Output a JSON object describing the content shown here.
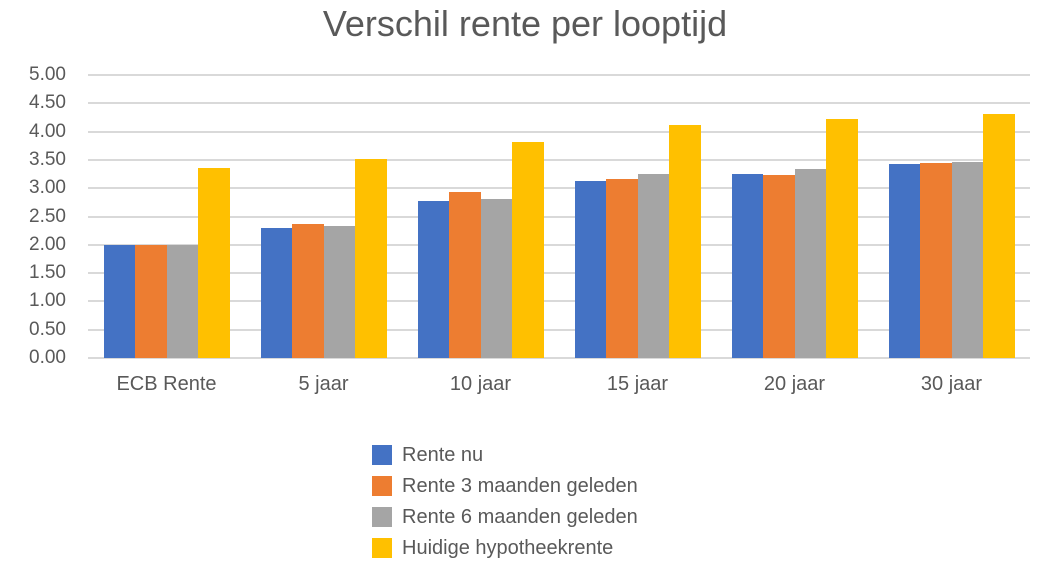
{
  "chart_data": {
    "type": "bar",
    "title": "Verschil rente per looptijd",
    "categories": [
      "ECB Rente",
      "5 jaar",
      "10 jaar",
      "15 jaar",
      "20 jaar",
      "30 jaar"
    ],
    "series": [
      {
        "name": "Rente nu",
        "color": "#4472C4",
        "values": [
          2.0,
          2.3,
          2.78,
          3.12,
          3.25,
          3.42
        ]
      },
      {
        "name": "Rente 3 maanden geleden",
        "color": "#ED7D31",
        "values": [
          2.0,
          2.36,
          2.93,
          3.17,
          3.23,
          3.44
        ]
      },
      {
        "name": "Rente 6 maanden geleden",
        "color": "#A5A5A5",
        "values": [
          2.0,
          2.34,
          2.81,
          3.25,
          3.34,
          3.46
        ]
      },
      {
        "name": "Huidige hypotheekrente",
        "color": "#FFC000",
        "values": [
          3.35,
          3.51,
          3.81,
          4.12,
          4.23,
          4.31
        ]
      }
    ],
    "y_axis": {
      "min": 0.0,
      "max": 5.0,
      "step": 0.5,
      "tick_labels": [
        "5.00",
        "4.50",
        "4.00",
        "3.50",
        "3.00",
        "2.50",
        "2.00",
        "1.50",
        "1.00",
        "0.50",
        "0.00"
      ]
    },
    "grid": true,
    "legend_position": "bottom-left-stacked",
    "colors": {
      "grid": "#D9D9D9",
      "text": "#595959",
      "title": "#595959",
      "background": "#FFFFFF"
    }
  }
}
